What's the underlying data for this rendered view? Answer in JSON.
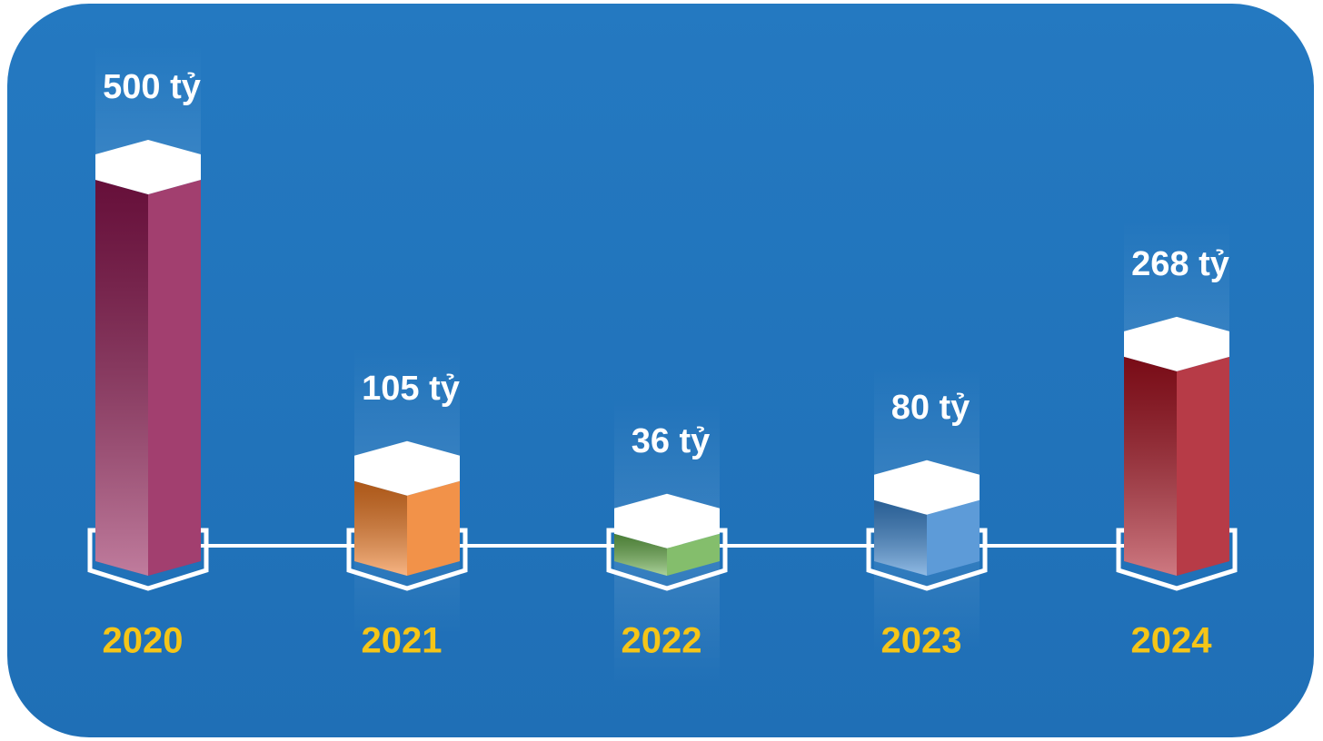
{
  "chart_data": {
    "type": "bar3d",
    "categories": [
      "2020",
      "2021",
      "2022",
      "2023",
      "2024"
    ],
    "values": [
      500,
      105,
      36,
      80,
      268
    ],
    "value_labels": [
      "500 tỷ",
      "105 tỷ",
      "36 tỷ",
      "80 tỷ",
      "268 tỷ"
    ],
    "colors": [
      "#8e1550",
      "#f07a22",
      "#6ab04c",
      "#3a85d0",
      "#a8101f"
    ]
  }
}
